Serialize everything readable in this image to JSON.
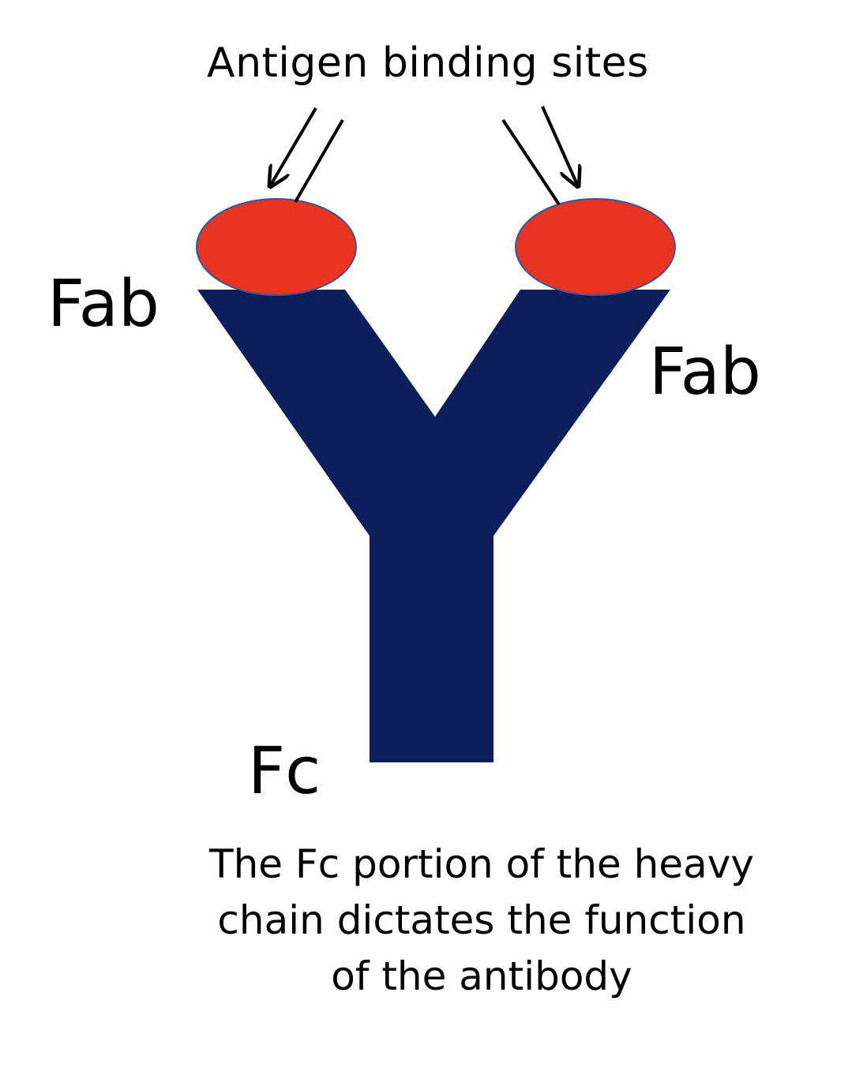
{
  "diagram": {
    "title": "Antigen binding sites",
    "fab_left_label": "Fab",
    "fab_right_label": "Fab",
    "fc_label": "Fc",
    "caption": {
      "line1": "The Fc portion of the heavy",
      "line2": "chain dictates the function",
      "line3": "of the antibody"
    },
    "colors": {
      "antibody_body": "#0c1f5a",
      "binding_site": "#e93424",
      "binding_site_outline": "#3a5597",
      "arrow": "#000000"
    }
  }
}
